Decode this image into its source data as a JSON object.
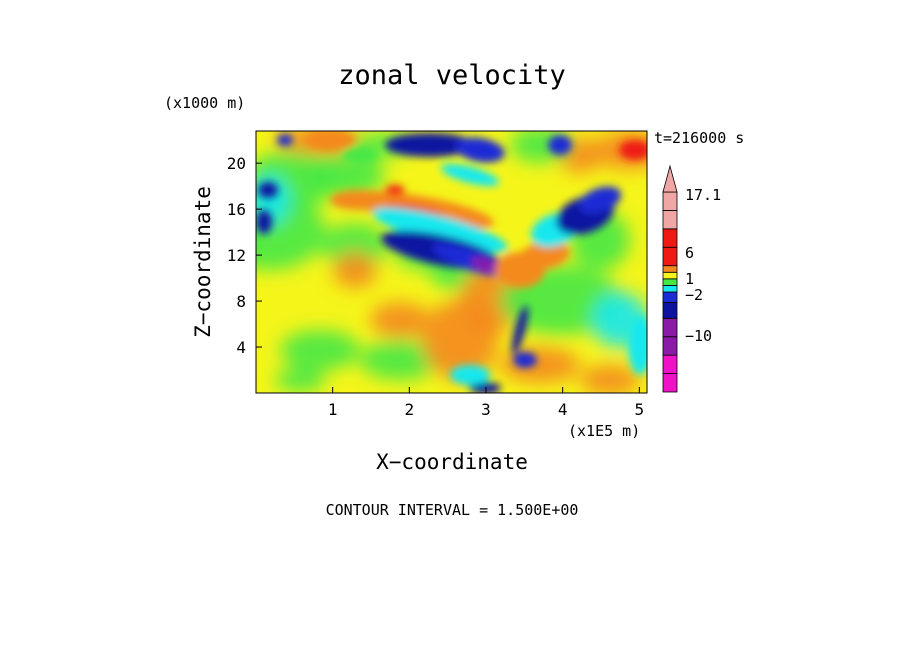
{
  "chart_data": {
    "type": "heatmap",
    "title": "zonal velocity",
    "xlabel": "X−coordinate",
    "ylabel": "Z−coordinate",
    "x_unit": "(x1E5 m)",
    "y_unit": "(x1000 m)",
    "time_label": "t=216000 s",
    "footer": "CONTOUR INTERVAL = 1.500E+00",
    "xlim": [
      0.0,
      5.1
    ],
    "ylim": [
      0,
      22.8
    ],
    "x_ticks": [
      "1",
      "2",
      "3",
      "4",
      "5"
    ],
    "y_ticks": [
      "4",
      "8",
      "12",
      "16",
      "20"
    ],
    "x_tick_values": [
      1,
      2,
      3,
      4,
      5
    ],
    "y_tick_values": [
      4,
      8,
      12,
      16,
      20
    ],
    "colorbar": {
      "labels": [
        "17.1",
        "6",
        "1",
        "−2",
        "−10"
      ],
      "label_values": [
        17.1,
        6,
        1,
        -2,
        -10
      ],
      "min": -16,
      "max": 17.1
    },
    "features": [
      {
        "kind": "westward jet (negative)",
        "x": [
          1.5,
          3.3
        ],
        "z": [
          10.5,
          13.5
        ]
      },
      {
        "kind": "eastward flow (positive)",
        "x": [
          1.6,
          3.4
        ],
        "z": [
          14.5,
          17.5
        ]
      },
      {
        "kind": "westward flow (negative)",
        "x": [
          1.8,
          3.2
        ],
        "z": [
          20,
          22.8
        ]
      },
      {
        "kind": "westward flow (negative)",
        "x": [
          3.9,
          5.0
        ],
        "z": [
          14,
          19
        ]
      },
      {
        "kind": "eastward flow (positive)",
        "x": [
          4.3,
          5.1
        ],
        "z": [
          20,
          22.8
        ]
      }
    ]
  },
  "palette": {
    "magenta": "#f011c8",
    "purple": "#8c1aa8",
    "dark_blue": "#0d13a0",
    "blue": "#1b2cd6",
    "cyan": "#14e8ee",
    "green": "#46e846",
    "yellow": "#f5f51a",
    "orange": "#f4891e",
    "red": "#ef1a14",
    "pink": "#f1a6a6"
  }
}
